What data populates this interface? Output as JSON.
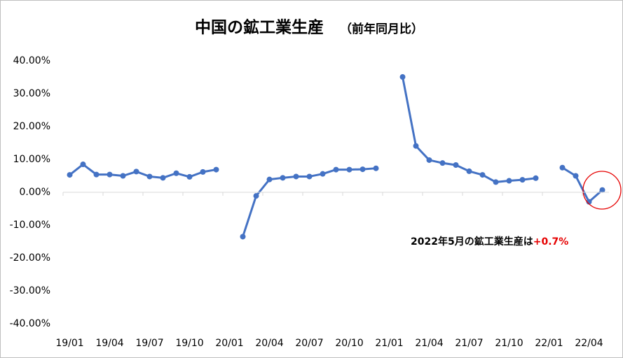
{
  "chart_data": {
    "type": "line",
    "title": "中国の鉱工業生産",
    "subtitle": "（前年同月比）",
    "categories": [
      "19/01",
      null,
      null,
      "19/04",
      null,
      null,
      "19/07",
      null,
      null,
      "19/10",
      null,
      null,
      "20/01",
      null,
      null,
      "20/04",
      null,
      null,
      "20/07",
      null,
      null,
      "20/10",
      null,
      null,
      "21/01",
      null,
      null,
      "21/04",
      null,
      null,
      "21/07",
      null,
      null,
      "21/10",
      null,
      null,
      "22/01",
      null,
      null,
      "22/04",
      null
    ],
    "series": [
      {
        "name": "鉱工業生産",
        "color": "#4472c4",
        "values": [
          5.3,
          8.5,
          5.4,
          5.4,
          5.0,
          6.3,
          4.8,
          4.4,
          5.8,
          4.7,
          6.2,
          6.9,
          null,
          -13.5,
          -1.1,
          3.9,
          4.4,
          4.8,
          4.8,
          5.6,
          6.9,
          6.9,
          7.0,
          7.3,
          null,
          35.1,
          14.1,
          9.8,
          8.9,
          8.3,
          6.4,
          5.3,
          3.1,
          3.5,
          3.8,
          4.3,
          null,
          7.5,
          5.0,
          -2.9,
          0.7
        ]
      }
    ],
    "ylim": [
      -40,
      40
    ],
    "yticks": [
      {
        "value": -40,
        "label": "-40.00%"
      },
      {
        "value": -30,
        "label": "-30.00%"
      },
      {
        "value": -20,
        "label": "-20.00%"
      },
      {
        "value": -10,
        "label": "-10.00%"
      },
      {
        "value": 0,
        "label": "0.00%"
      },
      {
        "value": 10,
        "label": "10.00%"
      },
      {
        "value": 20,
        "label": "20.00%"
      },
      {
        "value": 30,
        "label": "30.00%"
      },
      {
        "value": 40,
        "label": "40.00%"
      }
    ],
    "grid": false,
    "annotation": {
      "text": "2022年5月の鉱工業生産は",
      "highlight": "+0.7%",
      "highlight_color": "#e60000"
    }
  }
}
